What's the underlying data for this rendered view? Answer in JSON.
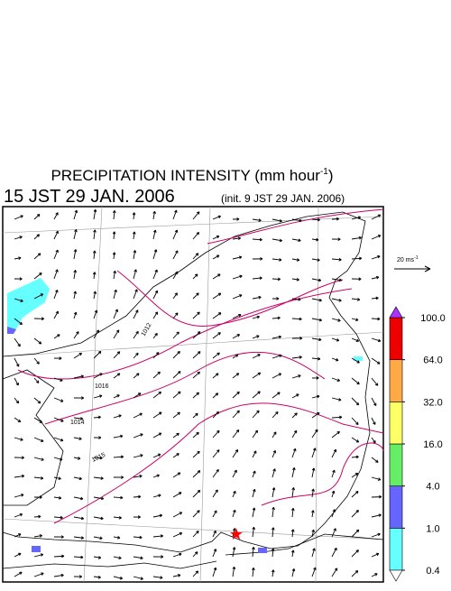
{
  "title": {
    "main": "PRECIPITATION INTENSITY (mm hour",
    "exponent": "-1",
    "close": ")"
  },
  "valid_time": "15 JST 29 JAN. 2006",
  "init_time": "(init. 9 JST 29 JAN. 2006)",
  "wind_scale": {
    "label": "20 ms",
    "exponent": "-1"
  },
  "colorbar": {
    "levels": [
      0.4,
      {
        "value": 1,
        "label": "1.0"
      },
      {
        "value": 4,
        "label": "4.0"
      },
      {
        "value": 16,
        "label": "16.0"
      },
      {
        "value": 32,
        "label": "32.0"
      },
      {
        "value": 64,
        "label": "64.0"
      },
      {
        "value": 100,
        "label": "100.0"
      }
    ],
    "colors": [
      "#66ffff",
      "#6666ff",
      "#66ee66",
      "#ffff66",
      "#ffaa44",
      "#ee0000"
    ],
    "under_color": "#ffffff",
    "over_color": "#aa33ff"
  },
  "contour_labels": [
    "1012",
    "1016",
    "1014",
    "1015"
  ]
}
